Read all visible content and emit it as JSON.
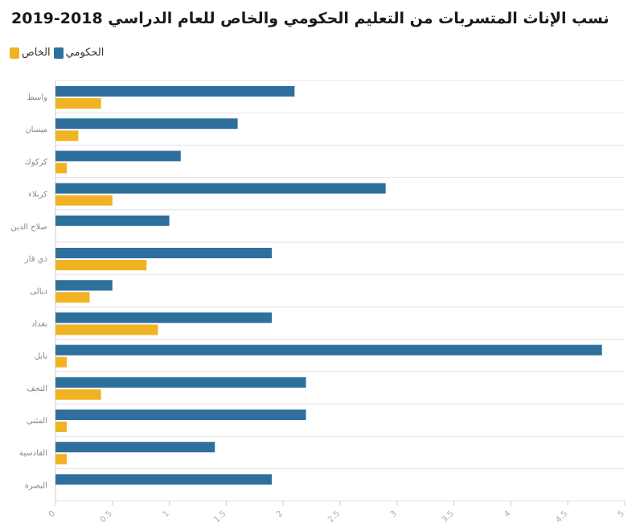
{
  "chart_data": {
    "type": "bar",
    "orientation": "horizontal",
    "title": "نسب الإناث المتسربات من التعليم الحكومي والخاص للعام الدراسي 2018-2019",
    "categories": [
      "واسط",
      "ميسان",
      "كركوك",
      "كربلاء",
      "صلاح الدين",
      "ذي قار",
      "ديالى",
      "بغداد",
      "بابل",
      "النجف",
      "المثنى",
      "القادسية",
      "البصرة"
    ],
    "series": [
      {
        "name": "الحكومي",
        "color": "#2e6f9e",
        "values": [
          2.1,
          1.6,
          1.1,
          2.9,
          1.0,
          1.9,
          0.5,
          1.9,
          4.8,
          2.2,
          2.2,
          1.4,
          1.9
        ]
      },
      {
        "name": "الخاص",
        "color": "#f0b323",
        "values": [
          0.4,
          0.2,
          0.1,
          0.5,
          0,
          0.8,
          0.3,
          0.9,
          0.1,
          0.4,
          0.1,
          0.1,
          0
        ]
      }
    ],
    "xlim": [
      0,
      5
    ],
    "xticks": [
      "0",
      "0.5",
      "1",
      "1.5",
      "2",
      "2.5",
      "3",
      "3.5",
      "4",
      "4.5",
      "5"
    ],
    "legend_position": "top-left",
    "grid": "horizontal"
  }
}
